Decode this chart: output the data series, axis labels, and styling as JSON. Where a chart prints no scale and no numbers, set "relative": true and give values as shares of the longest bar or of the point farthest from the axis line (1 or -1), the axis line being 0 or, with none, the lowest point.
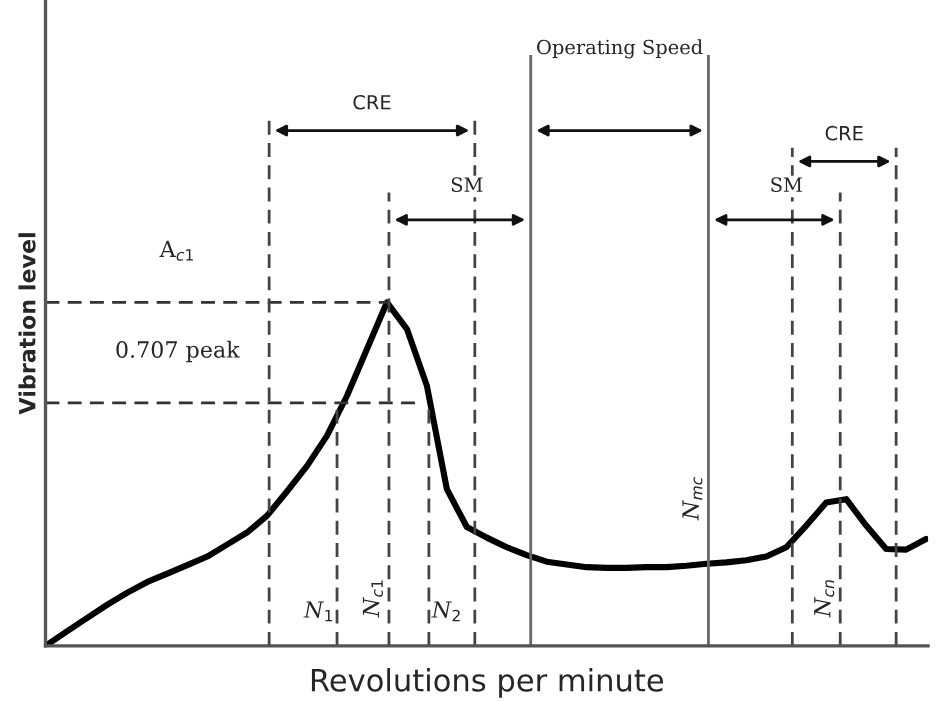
{
  "chart_data": {
    "type": "line",
    "relative": true,
    "xlabel": "Revolutions per minute",
    "ylabel": "Vibration level",
    "marker": "none",
    "line_style": "solid",
    "annotations": [
      "CRE",
      "Operating Speed",
      "SM",
      "SM",
      "CRE",
      "N$_{1}$",
      "N$_{c1}$",
      "N$_{2}$",
      "N$_{mc}$",
      "N$_{cn}$"
    ],
    "categories": [
      null,
      null,
      null,
      null,
      null,
      null,
      null,
      null,
      null,
      null,
      null,
      null,
      null,
      null,
      null,
      null,
      null,
      null,
      null,
      null,
      null,
      null,
      null,
      null,
      null,
      null,
      null,
      null,
      null,
      null,
      null,
      null,
      null,
      null,
      null,
      null,
      null,
      null,
      null,
      null,
      null,
      null,
      null,
      null,
      null
    ],
    "series": [
      {
        "color": "#000000",
        "values": [
          0.004,
          0.043,
          0.082,
          0.12,
          0.155,
          0.186,
          0.21,
          0.235,
          0.26,
          0.295,
          0.33,
          0.379,
          0.45,
          0.524,
          0.612,
          0.728,
          0.864,
          1.0,
          0.922,
          0.757,
          0.456,
          0.346,
          0.315,
          0.287,
          0.264,
          0.245,
          0.237,
          0.229,
          0.227,
          0.227,
          0.229,
          0.229,
          0.233,
          0.239,
          0.243,
          0.249,
          0.26,
          0.287,
          0.35,
          0.417,
          0.427,
          0.35,
          0.282,
          0.28,
          0.311
        ]
      }
    ],
    "ref_lines": [
      {
        "axis": "y",
        "value": 1.0,
        "label": "A$_{c1}$",
        "color": "#333333",
        "line_style": "dashed"
      },
      {
        "axis": "y",
        "value": 0.707,
        "label": "0.707 peak",
        "color": "#333333",
        "line_style": "dashed"
      }
    ]
  }
}
